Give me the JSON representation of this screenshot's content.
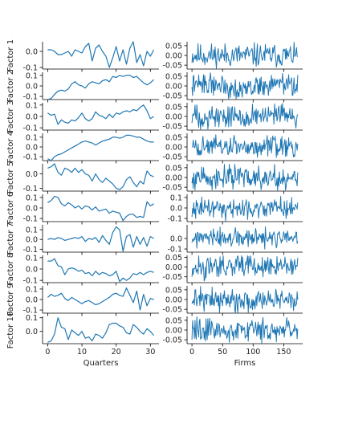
{
  "figure": {
    "colors": {
      "line": "#1f77b4",
      "axis": "#000000",
      "text": "#222222",
      "background": "#ffffff"
    },
    "left_xlabel": "Quarters",
    "right_xlabel": "Firms",
    "left_xticks": [
      0,
      10,
      20,
      30
    ],
    "right_xticks": [
      0,
      50,
      100,
      150
    ]
  },
  "chart_data": [
    {
      "type": "line",
      "ylabel": "Factor 1",
      "left": {
        "ylim": [
          -0.11,
          0.06
        ],
        "yticks": [
          {
            "v": -0.1,
            "t": "-0.1"
          },
          {
            "v": 0.0,
            "t": "0.0"
          }
        ],
        "x": [
          0,
          1,
          2,
          3,
          4,
          5,
          6,
          7,
          8,
          9,
          10,
          11,
          12,
          13,
          14,
          15,
          16,
          17,
          18,
          19,
          20,
          21,
          22,
          23,
          24,
          25,
          26,
          27,
          28,
          29,
          30,
          31
        ],
        "values": [
          0.01,
          0.01,
          0.0,
          -0.02,
          -0.02,
          -0.01,
          0.0,
          -0.03,
          0.01,
          0.0,
          -0.01,
          0.03,
          0.05,
          -0.06,
          0.02,
          0.04,
          0.0,
          -0.03,
          -0.1,
          -0.04,
          0.03,
          -0.06,
          0.01,
          -0.08,
          0.02,
          0.06,
          -0.07,
          -0.02,
          -0.09,
          0.0,
          -0.03,
          0.01
        ]
      },
      "right": {
        "ylim": [
          -0.07,
          0.07
        ],
        "yticks": [
          {
            "v": -0.05,
            "t": "-0.05"
          },
          {
            "v": 0.0,
            "t": "0.00"
          },
          {
            "v": 0.05,
            "t": "0.05"
          }
        ],
        "n": 174,
        "seed": 11,
        "amp": 0.03,
        "drift": 0.0
      }
    },
    {
      "type": "line",
      "ylabel": "Factor 2",
      "left": {
        "ylim": [
          -0.13,
          0.13
        ],
        "yticks": [
          {
            "v": -0.1,
            "t": "-0.1"
          },
          {
            "v": 0.0,
            "t": "0.0"
          },
          {
            "v": 0.1,
            "t": "0.1"
          }
        ],
        "x": [
          0,
          1,
          2,
          3,
          4,
          5,
          6,
          7,
          8,
          9,
          10,
          11,
          12,
          13,
          14,
          15,
          16,
          17,
          18,
          19,
          20,
          21,
          22,
          23,
          24,
          25,
          26,
          27,
          28,
          29,
          30,
          31
        ],
        "values": [
          -0.13,
          -0.12,
          -0.08,
          -0.05,
          -0.04,
          -0.05,
          -0.03,
          0.02,
          0.04,
          0.01,
          0.0,
          -0.02,
          0.02,
          0.04,
          0.03,
          0.02,
          0.05,
          0.06,
          0.04,
          0.09,
          0.08,
          0.1,
          0.09,
          0.1,
          0.1,
          0.08,
          0.09,
          0.06,
          0.03,
          0.01,
          0.03,
          0.06
        ]
      },
      "right": {
        "ylim": [
          -0.07,
          0.07
        ],
        "yticks": [
          {
            "v": -0.05,
            "t": "-0.05"
          },
          {
            "v": 0.0,
            "t": "0.00"
          },
          {
            "v": 0.05,
            "t": "0.05"
          }
        ],
        "n": 174,
        "seed": 22,
        "amp": 0.028,
        "drift": 0.012
      }
    },
    {
      "type": "line",
      "ylabel": "Factor 3",
      "left": {
        "ylim": [
          -0.12,
          0.12
        ],
        "yticks": [
          {
            "v": -0.1,
            "t": "-0.1"
          },
          {
            "v": 0.0,
            "t": "0.0"
          },
          {
            "v": 0.1,
            "t": "0.1"
          }
        ],
        "x": [
          0,
          1,
          2,
          3,
          4,
          5,
          6,
          7,
          8,
          9,
          10,
          11,
          12,
          13,
          14,
          15,
          16,
          17,
          18,
          19,
          20,
          21,
          22,
          23,
          24,
          25,
          26,
          27,
          28,
          29,
          30,
          31
        ],
        "values": [
          0.03,
          0.01,
          0.02,
          -0.07,
          -0.03,
          -0.05,
          -0.06,
          -0.03,
          -0.04,
          -0.01,
          0.03,
          -0.02,
          -0.04,
          -0.02,
          0.04,
          0.01,
          0.0,
          -0.02,
          0.02,
          -0.01,
          0.03,
          0.02,
          0.04,
          0.05,
          0.04,
          0.06,
          0.05,
          0.08,
          0.1,
          0.05,
          -0.02,
          0.0
        ]
      },
      "right": {
        "ylim": [
          -0.07,
          0.07
        ],
        "yticks": [
          {
            "v": -0.05,
            "t": "-0.05"
          },
          {
            "v": 0.0,
            "t": "0.00"
          },
          {
            "v": 0.05,
            "t": "0.05"
          }
        ],
        "n": 174,
        "seed": 33,
        "amp": 0.03,
        "drift": 0.0
      }
    },
    {
      "type": "line",
      "ylabel": "Factor 4",
      "left": {
        "ylim": [
          -0.14,
          0.14
        ],
        "yticks": [
          {
            "v": -0.1,
            "t": "-0.1"
          },
          {
            "v": 0.0,
            "t": "0.0"
          },
          {
            "v": 0.1,
            "t": "0.1"
          }
        ],
        "x": [
          0,
          1,
          2,
          3,
          4,
          5,
          6,
          7,
          8,
          9,
          10,
          11,
          12,
          13,
          14,
          15,
          16,
          17,
          18,
          19,
          20,
          21,
          22,
          23,
          24,
          25,
          26,
          27,
          28,
          29,
          30,
          31
        ],
        "values": [
          -0.12,
          -0.14,
          -0.1,
          -0.08,
          -0.07,
          -0.05,
          -0.03,
          -0.01,
          0.01,
          0.03,
          0.05,
          0.06,
          0.05,
          0.04,
          0.02,
          0.04,
          0.06,
          0.07,
          0.08,
          0.1,
          0.1,
          0.09,
          0.1,
          0.12,
          0.12,
          0.11,
          0.1,
          0.1,
          0.08,
          0.06,
          0.05,
          0.05
        ]
      },
      "right": {
        "ylim": [
          -0.07,
          0.07
        ],
        "yticks": [
          {
            "v": -0.05,
            "t": "-0.05"
          },
          {
            "v": 0.0,
            "t": "0.00"
          },
          {
            "v": 0.05,
            "t": "0.05"
          }
        ],
        "n": 174,
        "seed": 44,
        "amp": 0.027,
        "drift": 0.0
      }
    },
    {
      "type": "line",
      "ylabel": "Factor 5",
      "left": {
        "ylim": [
          -0.12,
          0.07
        ],
        "yticks": [
          {
            "v": -0.1,
            "t": "-0.1"
          },
          {
            "v": 0.0,
            "t": "0.0"
          }
        ],
        "x": [
          0,
          1,
          2,
          3,
          4,
          5,
          6,
          7,
          8,
          9,
          10,
          11,
          12,
          13,
          14,
          15,
          16,
          17,
          18,
          19,
          20,
          21,
          22,
          23,
          24,
          25,
          26,
          27,
          28,
          29,
          30,
          31
        ],
        "values": [
          0.04,
          0.05,
          0.07,
          0.01,
          -0.01,
          0.04,
          0.03,
          0.01,
          0.04,
          0.01,
          0.03,
          0.0,
          -0.01,
          -0.05,
          0.0,
          -0.04,
          -0.06,
          -0.03,
          -0.05,
          -0.07,
          -0.1,
          -0.11,
          -0.09,
          -0.04,
          -0.02,
          -0.06,
          -0.09,
          -0.05,
          -0.07,
          0.02,
          -0.01,
          -0.02
        ]
      },
      "right": {
        "ylim": [
          -0.07,
          0.07
        ],
        "yticks": [
          {
            "v": -0.05,
            "t": "-0.05"
          },
          {
            "v": 0.0,
            "t": "0.00"
          },
          {
            "v": 0.05,
            "t": "0.05"
          }
        ],
        "n": 174,
        "seed": 55,
        "amp": 0.03,
        "drift": 0.0
      }
    },
    {
      "type": "line",
      "ylabel": "Factor 6",
      "left": {
        "ylim": [
          -0.13,
          0.13
        ],
        "yticks": [
          {
            "v": -0.1,
            "t": "-0.1"
          },
          {
            "v": 0.0,
            "t": "0.0"
          },
          {
            "v": 0.1,
            "t": "0.1"
          }
        ],
        "x": [
          0,
          1,
          2,
          3,
          4,
          5,
          6,
          7,
          8,
          9,
          10,
          11,
          12,
          13,
          14,
          15,
          16,
          17,
          18,
          19,
          20,
          21,
          22,
          23,
          24,
          25,
          26,
          27,
          28,
          29,
          30,
          31
        ],
        "values": [
          0.05,
          0.07,
          0.11,
          0.1,
          0.04,
          0.02,
          0.05,
          0.03,
          0.0,
          0.02,
          -0.01,
          0.02,
          0.01,
          -0.02,
          0.01,
          -0.03,
          -0.02,
          -0.01,
          -0.05,
          -0.03,
          -0.04,
          -0.05,
          -0.12,
          -0.08,
          -0.06,
          -0.06,
          -0.09,
          -0.08,
          -0.09,
          0.06,
          0.02,
          0.04
        ]
      },
      "right": {
        "ylim": [
          -0.13,
          0.13
        ],
        "yticks": [
          {
            "v": -0.1,
            "t": "-0.1"
          },
          {
            "v": 0.0,
            "t": "0.0"
          },
          {
            "v": 0.1,
            "t": "0.1"
          }
        ],
        "n": 174,
        "seed": 66,
        "amp": 0.045,
        "drift": 0.0
      }
    },
    {
      "type": "line",
      "ylabel": "Factor 7",
      "left": {
        "ylim": [
          -0.13,
          0.15
        ],
        "yticks": [
          {
            "v": -0.1,
            "t": "-0.1"
          },
          {
            "v": 0.0,
            "t": "0.0"
          },
          {
            "v": 0.1,
            "t": "0.1"
          }
        ],
        "x": [
          0,
          1,
          2,
          3,
          4,
          5,
          6,
          7,
          8,
          9,
          10,
          11,
          12,
          13,
          14,
          15,
          16,
          17,
          18,
          19,
          20,
          21,
          22,
          23,
          24,
          25,
          26,
          27,
          28,
          29,
          30,
          31
        ],
        "values": [
          0.0,
          0.01,
          0.0,
          0.02,
          0.01,
          -0.01,
          0.0,
          0.01,
          0.02,
          0.01,
          0.03,
          -0.02,
          0.01,
          0.0,
          0.02,
          -0.03,
          0.04,
          -0.01,
          -0.05,
          0.07,
          0.13,
          0.1,
          -0.12,
          0.03,
          0.05,
          -0.08,
          0.03,
          -0.05,
          0.02,
          -0.07,
          0.03,
          0.01
        ]
      },
      "right": {
        "ylim": [
          -0.13,
          0.13
        ],
        "yticks": [
          {
            "v": -0.1,
            "t": "-0.1"
          },
          {
            "v": 0.0,
            "t": "0.0"
          }
        ],
        "n": 174,
        "seed": 77,
        "amp": 0.045,
        "drift": 0.0
      }
    },
    {
      "type": "line",
      "ylabel": "Factor 8",
      "left": {
        "ylim": [
          -0.12,
          0.12
        ],
        "yticks": [
          {
            "v": -0.1,
            "t": "-0.1"
          },
          {
            "v": 0.0,
            "t": "0.0"
          },
          {
            "v": 0.1,
            "t": "0.1"
          }
        ],
        "x": [
          0,
          1,
          2,
          3,
          4,
          5,
          6,
          7,
          8,
          9,
          10,
          11,
          12,
          13,
          14,
          15,
          16,
          17,
          18,
          19,
          20,
          21,
          22,
          23,
          24,
          25,
          26,
          27,
          28,
          29,
          30,
          31
        ],
        "values": [
          0.07,
          0.07,
          0.09,
          0.03,
          0.02,
          -0.05,
          0.0,
          0.01,
          0.0,
          -0.02,
          -0.01,
          -0.04,
          -0.03,
          -0.06,
          -0.02,
          -0.05,
          -0.03,
          -0.04,
          -0.06,
          -0.05,
          -0.02,
          -0.11,
          -0.08,
          -0.1,
          -0.08,
          -0.04,
          -0.05,
          -0.03,
          -0.05,
          -0.03,
          -0.02,
          -0.03
        ]
      },
      "right": {
        "ylim": [
          -0.08,
          0.06
        ],
        "yticks": [
          {
            "v": -0.05,
            "t": "-0.05"
          },
          {
            "v": 0.0,
            "t": "0.00"
          },
          {
            "v": 0.05,
            "t": "0.05"
          }
        ],
        "n": 174,
        "seed": 88,
        "amp": 0.028,
        "drift": 0.0
      }
    },
    {
      "type": "line",
      "ylabel": "Factor 9",
      "left": {
        "ylim": [
          -0.13,
          0.13
        ],
        "yticks": [
          {
            "v": -0.1,
            "t": "-0.1"
          },
          {
            "v": 0.0,
            "t": "0.0"
          },
          {
            "v": 0.1,
            "t": "0.1"
          }
        ],
        "x": [
          0,
          1,
          2,
          3,
          4,
          5,
          6,
          7,
          8,
          9,
          10,
          11,
          12,
          13,
          14,
          15,
          16,
          17,
          18,
          19,
          20,
          21,
          22,
          23,
          24,
          25,
          26,
          27,
          28,
          29,
          30,
          31
        ],
        "values": [
          0.02,
          0.05,
          0.03,
          0.04,
          0.06,
          0.01,
          -0.01,
          0.02,
          0.0,
          -0.02,
          -0.04,
          -0.02,
          -0.01,
          -0.03,
          -0.05,
          -0.04,
          -0.02,
          0.0,
          0.02,
          0.05,
          0.06,
          0.04,
          0.03,
          0.11,
          0.04,
          -0.03,
          0.08,
          -0.1,
          0.05,
          -0.06,
          0.01,
          0.0
        ]
      },
      "right": {
        "ylim": [
          -0.07,
          0.07
        ],
        "yticks": [
          {
            "v": -0.05,
            "t": "-0.05"
          },
          {
            "v": 0.0,
            "t": "0.00"
          },
          {
            "v": 0.05,
            "t": "0.05"
          }
        ],
        "n": 174,
        "seed": 99,
        "amp": 0.03,
        "drift": 0.0
      }
    },
    {
      "type": "line",
      "ylabel": "Factor 10",
      "left": {
        "ylim": [
          -0.09,
          0.11
        ],
        "yticks": [
          {
            "v": 0.0,
            "t": "0.0"
          },
          {
            "v": 0.1,
            "t": "0.1"
          }
        ],
        "x": [
          0,
          1,
          2,
          3,
          4,
          5,
          6,
          7,
          8,
          9,
          10,
          11,
          12,
          13,
          14,
          15,
          16,
          17,
          18,
          19,
          20,
          21,
          22,
          23,
          24,
          25,
          26,
          27,
          28,
          29,
          30,
          31
        ],
        "values": [
          -0.08,
          -0.07,
          -0.02,
          0.1,
          0.03,
          0.02,
          -0.06,
          0.01,
          -0.01,
          -0.03,
          0.0,
          -0.05,
          -0.04,
          -0.07,
          -0.02,
          -0.03,
          -0.05,
          -0.01,
          0.05,
          0.06,
          0.06,
          0.04,
          0.03,
          -0.01,
          -0.02,
          0.05,
          0.03,
          0.0,
          -0.02,
          0.02,
          0.0,
          -0.03
        ]
      },
      "right": {
        "ylim": [
          -0.07,
          0.07
        ],
        "yticks": [
          {
            "v": -0.05,
            "t": "-0.05"
          },
          {
            "v": 0.0,
            "t": "0.00"
          },
          {
            "v": 0.05,
            "t": "0.05"
          }
        ],
        "n": 174,
        "seed": 110,
        "amp": 0.03,
        "drift": 0.0
      }
    }
  ]
}
